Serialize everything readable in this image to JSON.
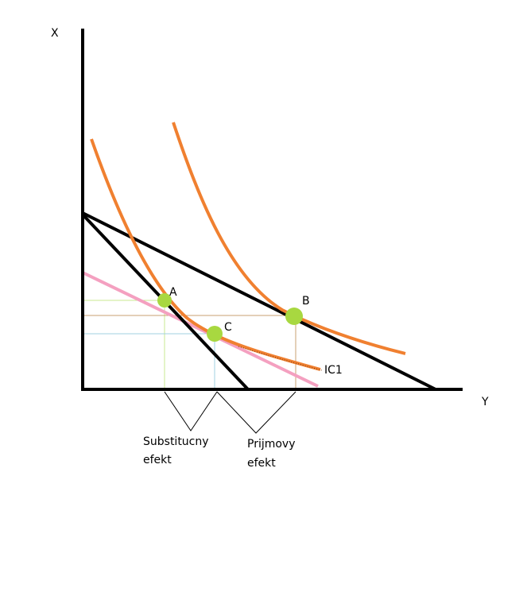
{
  "axes": {
    "vertical_label": "X",
    "horizontal_label": "Y"
  },
  "points": {
    "a": "A",
    "b": "B",
    "c": "C"
  },
  "curve_label": "IC1",
  "effects": {
    "substitution": {
      "line1": "Substitucny",
      "line2": "efekt"
    },
    "income": {
      "line1": "Prijmovy",
      "line2": "efekt"
    }
  },
  "colors": {
    "axis": "#000000",
    "budget_line": "#000000",
    "indifference_curve": "#f08030",
    "compensated_budget_line": "#f4a0c0",
    "point": "#a8d840",
    "guide_a": "#c8e890",
    "guide_b": "#c8a070",
    "guide_c": "#a0d0e0"
  }
}
